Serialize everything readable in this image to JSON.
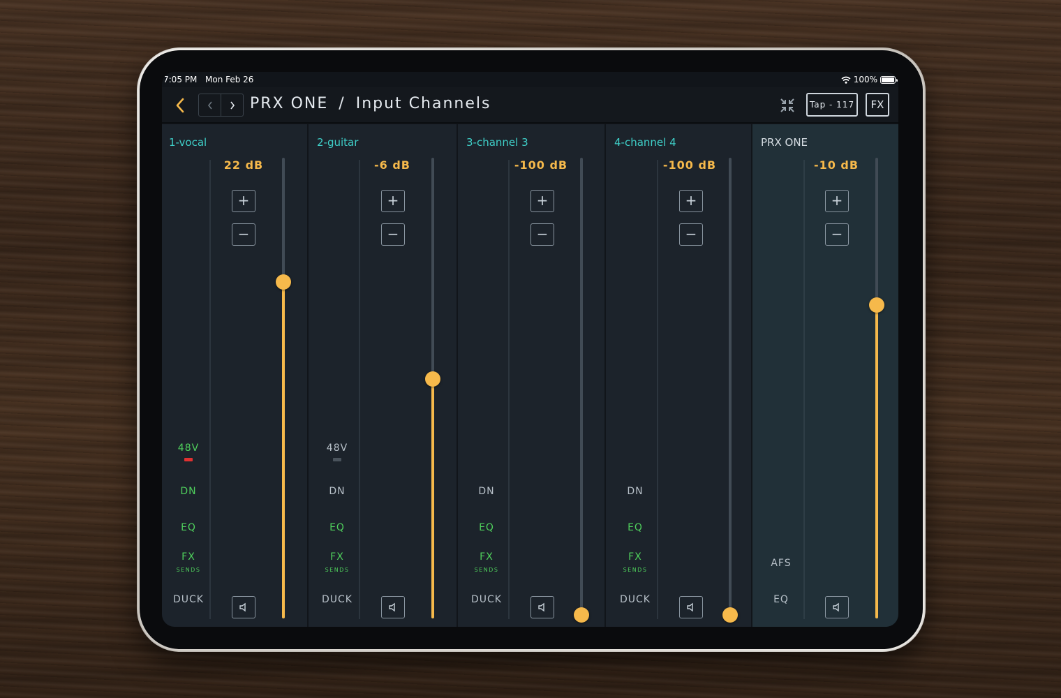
{
  "status": {
    "time": "7:05 PM",
    "date": "Mon Feb 26",
    "battery": "100%"
  },
  "header": {
    "title_device": "PRX ONE",
    "title_sep": "/",
    "title_page": "Input Channels",
    "tap_label": "Tap - 117",
    "fx_label": "FX"
  },
  "colors": {
    "accent": "#f6b94b",
    "channel_name": "#3fd0c9",
    "active_green": "#4fd05c",
    "led_red": "#e03131"
  },
  "icons": [
    "chevron-left-icon",
    "chevron-right-icon",
    "collapse-icon",
    "wifi-icon",
    "battery-icon",
    "speaker-mute-icon"
  ],
  "channels": [
    {
      "name": "1-vocal",
      "level": "22 dB",
      "fader_fraction": 0.73,
      "phantom": "48V",
      "phantom_on": true,
      "dn": "DN",
      "eq": "EQ",
      "fx": "FX",
      "fx_sub": "SENDS",
      "duck": "DUCK",
      "plus": "+",
      "minus": "−"
    },
    {
      "name": "2-guitar",
      "level": "-6 dB",
      "fader_fraction": 0.52,
      "phantom": "48V",
      "phantom_on": false,
      "dn": "DN",
      "eq": "EQ",
      "fx": "FX",
      "fx_sub": "SENDS",
      "duck": "DUCK",
      "plus": "+",
      "minus": "−"
    },
    {
      "name": "3-channel 3",
      "level": "-100 dB",
      "fader_fraction": 0.0,
      "dn": "DN",
      "eq": "EQ",
      "fx": "FX",
      "fx_sub": "SENDS",
      "duck": "DUCK",
      "plus": "+",
      "minus": "−"
    },
    {
      "name": "4-channel 4",
      "level": "-100 dB",
      "fader_fraction": 0.0,
      "dn": "DN",
      "eq": "EQ",
      "fx": "FX",
      "fx_sub": "SENDS",
      "duck": "DUCK",
      "plus": "+",
      "minus": "−"
    }
  ],
  "master": {
    "name": "PRX ONE",
    "level": "-10 dB",
    "fader_fraction": 0.68,
    "afs": "AFS",
    "eq": "EQ",
    "plus": "+",
    "minus": "−"
  }
}
